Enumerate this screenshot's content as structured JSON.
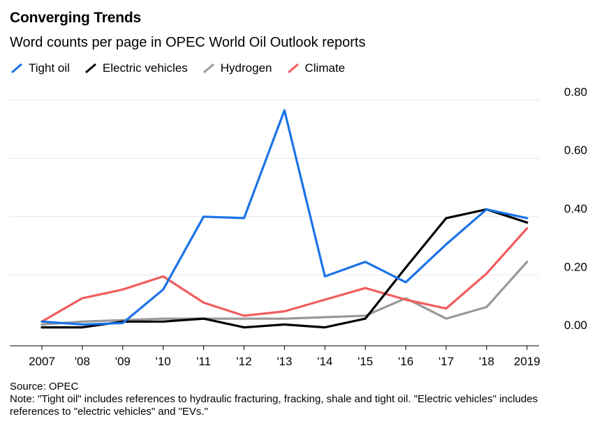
{
  "title": "Converging Trends",
  "subtitle": "Word counts per page in OPEC World Oil Outlook reports",
  "source": "Source: OPEC",
  "note": "Note: \"Tight oil\" includes references to hydraulic fracturing, fracking, shale and tight oil. \"Electric vehicles\" includes references to \"electric vehicles\" and \"EVs.\"",
  "chart_data": {
    "type": "line",
    "title": "Converging Trends",
    "subtitle": "Word counts per page in OPEC World Oil Outlook reports",
    "xlabel": "",
    "ylabel": "",
    "categories": [
      "2007",
      "'08",
      "'09",
      "'10",
      "'11",
      "'12",
      "'13",
      "'14",
      "'15",
      "'16",
      "'17",
      "'18",
      "2019"
    ],
    "ylim": [
      0,
      0.8
    ],
    "yticks": [
      0,
      0.2,
      0.4,
      0.6,
      0.8
    ],
    "ytick_labels": [
      "0.00",
      "0.20",
      "0.40",
      "0.60",
      "0.80"
    ],
    "y_axis_side": "right",
    "grid": true,
    "legend_position": "top-left",
    "series": [
      {
        "name": "Tight oil",
        "color": "#1a73e8",
        "values": [
          0.04,
          0.03,
          0.035,
          0.15,
          0.4,
          0.395,
          0.765,
          0.195,
          0.245,
          0.175,
          0.305,
          0.425,
          0.395
        ]
      },
      {
        "name": "Electric vehicles",
        "color": "#000000",
        "values": [
          0.02,
          0.02,
          0.04,
          0.04,
          0.05,
          0.02,
          0.03,
          0.02,
          0.05,
          0.225,
          0.395,
          0.425,
          0.38
        ]
      },
      {
        "name": "Hydrogen",
        "color": "#999999",
        "values": [
          0.03,
          0.04,
          0.045,
          0.05,
          0.05,
          0.05,
          0.05,
          0.055,
          0.06,
          0.12,
          0.05,
          0.09,
          0.245
        ]
      },
      {
        "name": "Climate",
        "color": "#f25c5c",
        "values": [
          0.04,
          0.12,
          0.15,
          0.195,
          0.105,
          0.06,
          0.075,
          0.115,
          0.155,
          0.115,
          0.085,
          0.205,
          0.36
        ]
      }
    ]
  }
}
